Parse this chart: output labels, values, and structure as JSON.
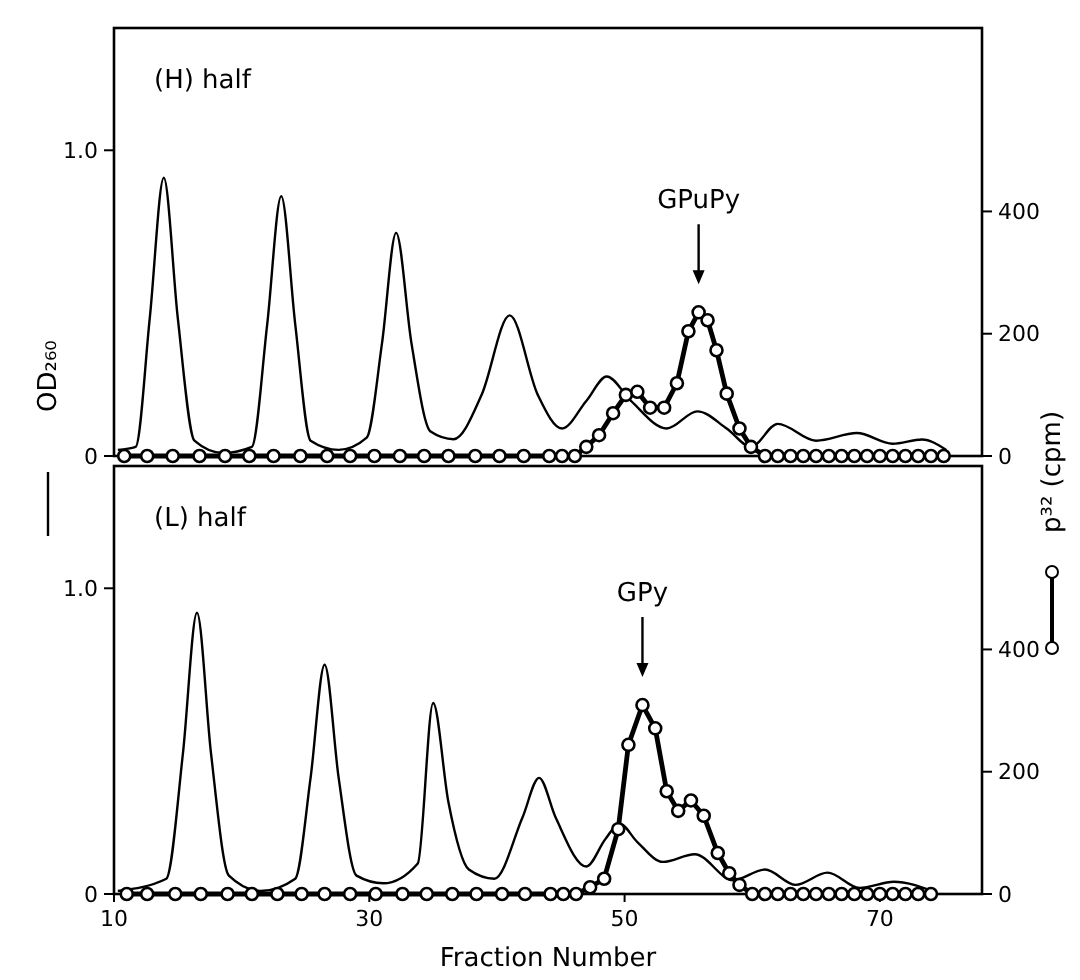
{
  "chart_data": [
    {
      "type": "line",
      "title": "(H) half",
      "ylabel": "OD₂₆₀",
      "y2label": "p³² (cpm)",
      "xlim": [
        10,
        78
      ],
      "ylim": [
        0,
        1.4
      ],
      "yticks": [
        0,
        {
          "value": 1,
          "label": "1.0"
        }
      ],
      "y2lim": [
        0,
        700
      ],
      "y2ticks": [
        0,
        200,
        400
      ],
      "tick_labels": "y",
      "grid": false,
      "annotations": [
        "GPuPy"
      ],
      "series": [
        {
          "color": "#000000",
          "marker": "none",
          "line_style": "solid",
          "x": [
            10.3,
            11.7,
            12.8,
            13.9,
            15.0,
            16.3,
            18.5,
            20.8,
            22.0,
            23.1,
            24.2,
            25.4,
            27.6,
            29.8,
            31.0,
            32.1,
            33.3,
            34.8,
            36.6,
            38.8,
            41.0,
            43.2,
            45.1,
            47.0,
            48.6,
            50.5,
            53.3,
            55.7,
            58.0,
            59.9,
            62.0,
            65.0,
            68.2,
            71.0,
            73.3,
            75.2
          ],
          "values": [
            0.02,
            0.03,
            0.45,
            0.91,
            0.45,
            0.05,
            0.01,
            0.03,
            0.43,
            0.85,
            0.43,
            0.05,
            0.02,
            0.06,
            0.37,
            0.73,
            0.37,
            0.08,
            0.055,
            0.2,
            0.46,
            0.2,
            0.09,
            0.18,
            0.26,
            0.18,
            0.09,
            0.146,
            0.09,
            0.03,
            0.105,
            0.05,
            0.075,
            0.04,
            0.054,
            0.02
          ]
        },
        {
          "axis": "y2",
          "color": "#000000",
          "marker": "circle",
          "line_style": "solid",
          "x": [
            10.8,
            12.6,
            14.6,
            16.7,
            18.7,
            20.6,
            22.5,
            24.6,
            26.7,
            28.5,
            30.4,
            32.4,
            34.3,
            36.2,
            38.3,
            40.2,
            42.1,
            44.1,
            45.1,
            46.1,
            47.0,
            48.0,
            49.1,
            50.1,
            51.0,
            52.0,
            53.1,
            54.1,
            55.0,
            55.8,
            56.5,
            57.2,
            58.0,
            59.0,
            59.9,
            61,
            62,
            63,
            64,
            65,
            66,
            67,
            68,
            69,
            70,
            71,
            72,
            73,
            74,
            75
          ],
          "values": [
            0,
            0,
            0,
            0,
            0,
            0,
            0,
            0,
            0,
            0,
            0,
            0,
            0,
            0,
            0,
            0,
            0,
            0,
            0,
            0,
            15,
            34,
            70,
            100,
            105,
            79,
            79,
            119,
            204,
            235,
            222,
            173,
            102,
            45,
            15,
            0,
            0,
            0,
            0,
            0,
            0,
            0,
            0,
            0,
            0,
            0,
            0,
            0,
            0,
            0
          ]
        }
      ]
    },
    {
      "type": "line",
      "title": "(L) half",
      "xlabel": "Fraction Number",
      "xlim": [
        10,
        78
      ],
      "xticks": [
        10,
        30,
        50,
        70
      ],
      "ylim": [
        0,
        1.4
      ],
      "yticks": [
        0,
        {
          "value": 1,
          "label": "1.0"
        }
      ],
      "y2lim": [
        0,
        700
      ],
      "y2ticks": [
        0,
        200,
        400
      ],
      "grid": false,
      "annotations": [
        "GPy"
      ],
      "series": [
        {
          "color": "#000000",
          "marker": "none",
          "line_style": "solid",
          "x": [
            10.3,
            14.1,
            15.4,
            16.5,
            17.6,
            19.0,
            21.5,
            24.2,
            25.4,
            26.5,
            27.6,
            29.0,
            31.1,
            33.8,
            35.0,
            36.2,
            37.8,
            39.8,
            42.0,
            43.3,
            44.6,
            47.0,
            48.5,
            49.6,
            51.0,
            53.0,
            55.5,
            58.5,
            61.0,
            63.4,
            65.9,
            68.4,
            71.1,
            74.1
          ],
          "values": [
            0.01,
            0.05,
            0.46,
            0.92,
            0.46,
            0.06,
            0.01,
            0.05,
            0.38,
            0.75,
            0.38,
            0.06,
            0.035,
            0.1,
            0.625,
            0.3,
            0.08,
            0.05,
            0.25,
            0.38,
            0.25,
            0.09,
            0.18,
            0.23,
            0.17,
            0.105,
            0.13,
            0.045,
            0.08,
            0.03,
            0.07,
            0.02,
            0.04,
            0.01
          ]
        },
        {
          "axis": "y2",
          "color": "#000000",
          "marker": "circle",
          "line_style": "solid",
          "x": [
            11.0,
            12.6,
            14.8,
            16.8,
            18.9,
            20.8,
            22.8,
            24.7,
            26.5,
            28.5,
            30.5,
            32.6,
            34.5,
            36.5,
            38.4,
            40.4,
            42.2,
            44.2,
            45.2,
            46.2,
            47.3,
            48.4,
            49.5,
            50.3,
            51.4,
            52.4,
            53.3,
            54.2,
            55.2,
            56.2,
            57.3,
            58.2,
            59.0,
            60,
            61,
            62,
            63,
            64,
            65,
            66,
            67,
            68,
            69,
            70,
            71,
            72,
            73,
            74
          ],
          "values": [
            0,
            0,
            0,
            0,
            0,
            0,
            0,
            0,
            0,
            0,
            0,
            0,
            0,
            0,
            0,
            0,
            0,
            0,
            0,
            0,
            11,
            25,
            106,
            244,
            309,
            271,
            168,
            136,
            153,
            128,
            67,
            34,
            15,
            0,
            0,
            0,
            0,
            0,
            0,
            0,
            0,
            0,
            0,
            0,
            0,
            0,
            0,
            0
          ]
        }
      ]
    }
  ]
}
